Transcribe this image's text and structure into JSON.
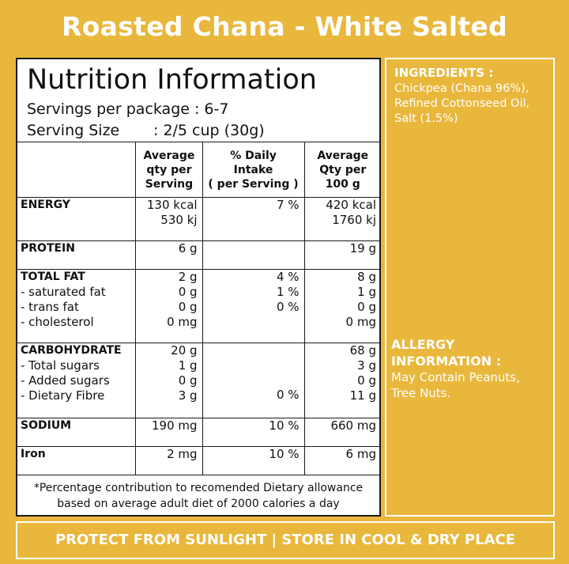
{
  "title": "Roasted Chana - White Salted",
  "nutrition": {
    "heading": "Nutrition Information",
    "servings_per_package": "Servings per package : 6-7",
    "serving_size_label": "Serving Size",
    "serving_size_value": ": 2/5 cup (30g)",
    "headers": {
      "col2": [
        "Average",
        "qty per",
        "Serving"
      ],
      "col3": [
        "% Daily",
        "Intake",
        "( per Serving )"
      ],
      "col4": [
        "Average",
        "Qty per",
        "100 g"
      ]
    },
    "rows": {
      "energy": {
        "label": "ENERGY",
        "serving": [
          "130 kcal",
          "530 kj"
        ],
        "daily": "7 %",
        "per100": [
          "420 kcal",
          "1760 kj"
        ]
      },
      "protein": {
        "label": "PROTEIN",
        "serving": "6 g",
        "daily": "",
        "per100": "19 g"
      },
      "fat": {
        "label": "TOTAL FAT",
        "sub": [
          "- saturated fat",
          "- trans fat",
          "- cholesterol"
        ],
        "serving": [
          "2 g",
          "0 g",
          "0 g",
          "0 mg"
        ],
        "daily": [
          "4 %",
          "1 %",
          "0 %"
        ],
        "per100": [
          "8 g",
          "1 g",
          "0 g",
          "0 mg"
        ]
      },
      "carb": {
        "label": "CARBOHYDRATE",
        "sub": [
          "- Total sugars",
          "- Added sugars",
          "- Dietary Fibre"
        ],
        "serving": [
          "20 g",
          "1 g",
          "0 g",
          "3 g"
        ],
        "daily": "0 %",
        "per100": [
          "68 g",
          "3 g",
          "0 g",
          "11 g"
        ]
      },
      "sodium": {
        "label": "SODIUM",
        "serving": "190 mg",
        "daily": "10 %",
        "per100": "660 mg"
      },
      "iron": {
        "label": "Iron",
        "serving": "2 mg",
        "daily": "10 %",
        "per100": "6 mg"
      }
    },
    "footnote": [
      "*Percentage contribution to recomended Dietary allowance",
      "based on average adult diet of 2000 calories a day"
    ]
  },
  "ingredients": {
    "heading": "INGREDIENTS :",
    "lines": [
      "Chickpea (Chana 96%),",
      "Refined Cottonseed Oil,",
      "Salt (1.5%)"
    ]
  },
  "allergy": {
    "heading": [
      "ALLERGY",
      "INFORMATION :"
    ],
    "lines": [
      "May Contain Peanuts,",
      "Tree Nuts."
    ]
  },
  "storage": "PROTECT FROM SUNLIGHT | STORE IN COOL & DRY PLACE"
}
